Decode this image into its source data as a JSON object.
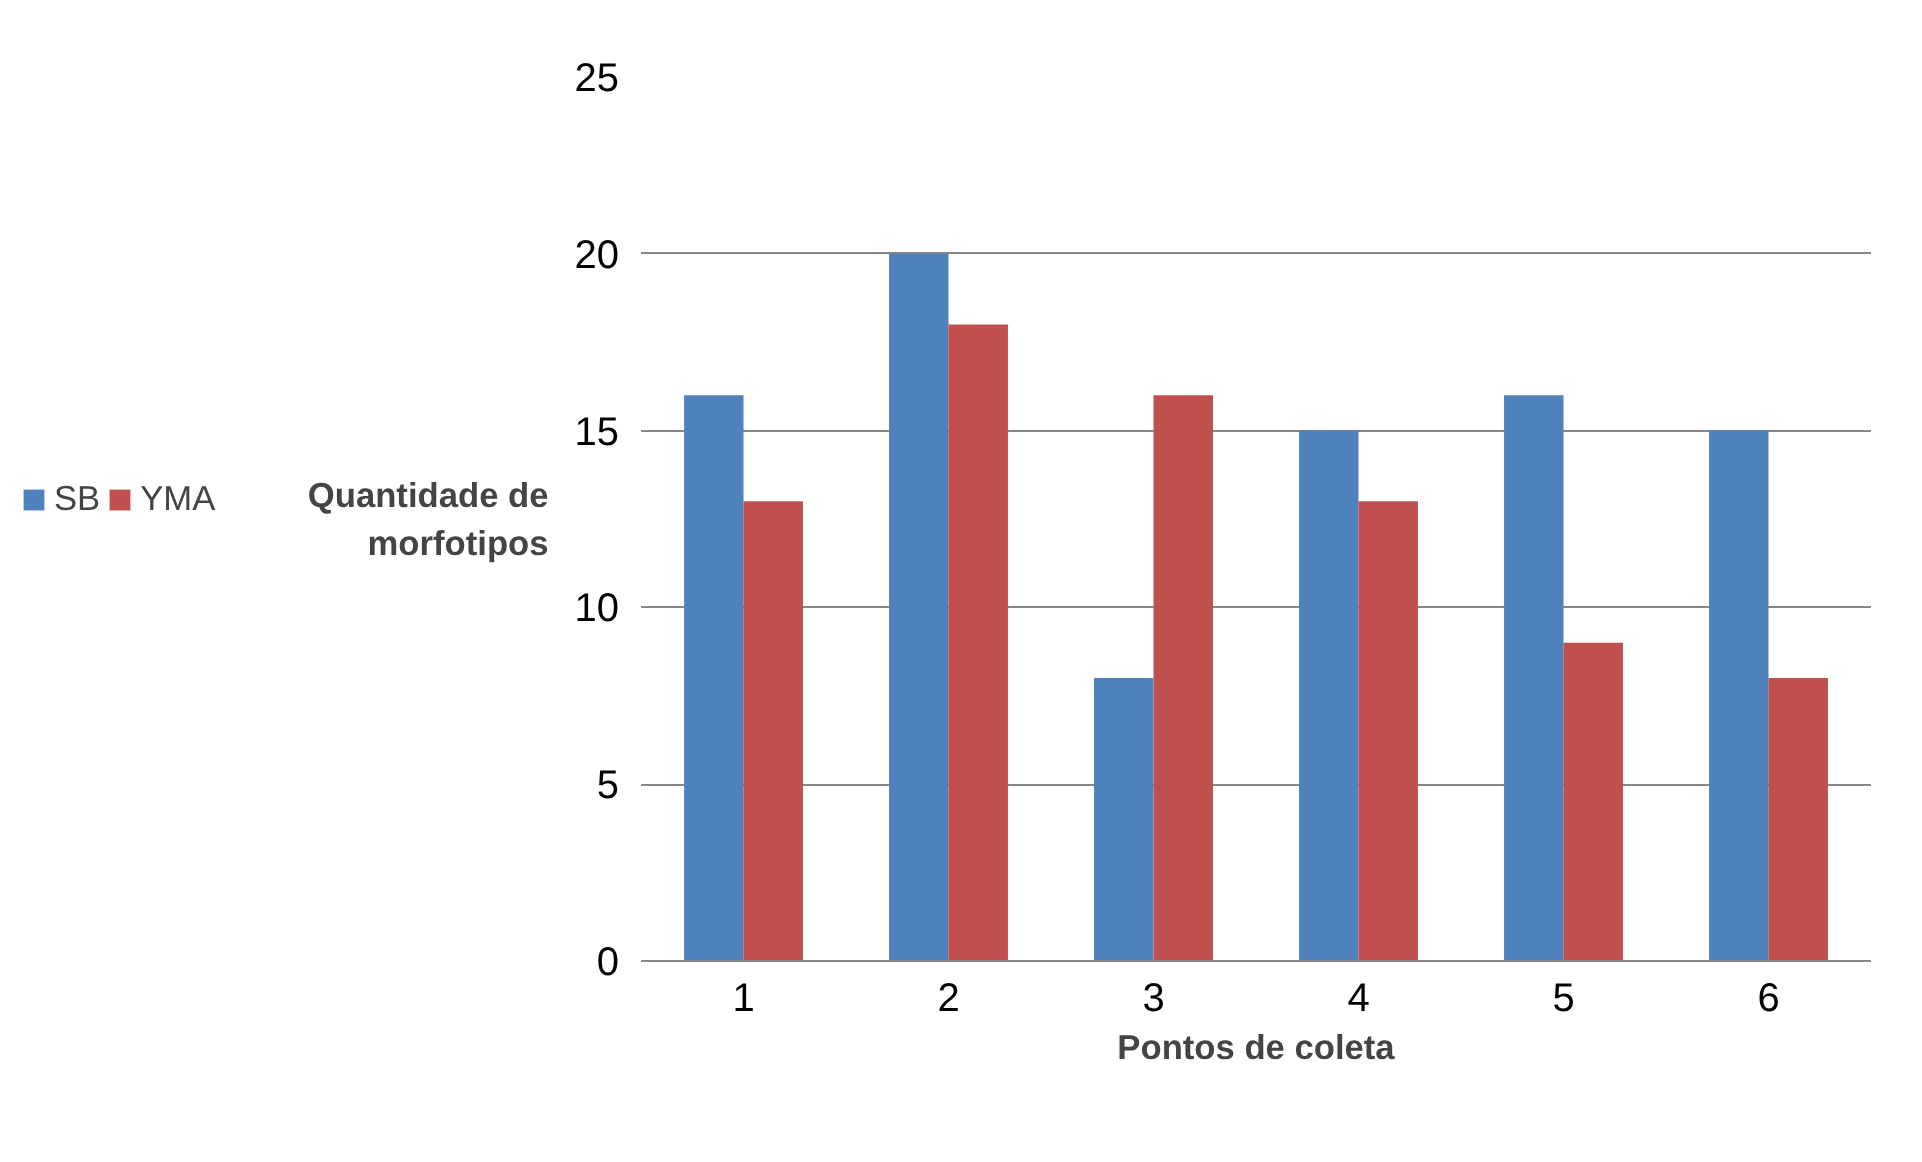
{
  "chart_data": {
    "type": "bar",
    "xlabel": "Pontos de coleta",
    "ylabel": "Quantidade de\nmorfotipos",
    "categories": [
      "1",
      "2",
      "3",
      "4",
      "5",
      "6"
    ],
    "series": [
      {
        "name": "SB",
        "color": "#4f81bd",
        "values": [
          16,
          20,
          8,
          15,
          16,
          15
        ]
      },
      {
        "name": "YMA",
        "color": "#c0504d",
        "values": [
          13,
          18,
          16,
          13,
          9,
          8
        ]
      }
    ],
    "ylim": [
      0,
      25
    ],
    "yticks": [
      0,
      5,
      10,
      15,
      20,
      25
    ],
    "grid": "y",
    "legend": "left"
  }
}
